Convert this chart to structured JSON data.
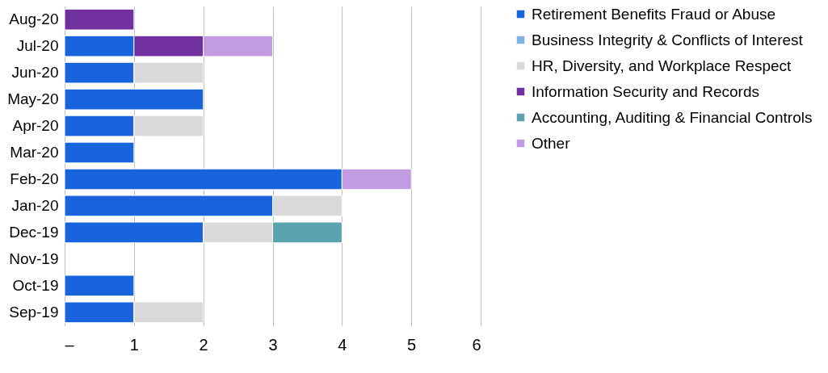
{
  "chart_data": {
    "type": "bar",
    "orientation": "horizontal",
    "stacked": true,
    "categories": [
      "Aug-20",
      "Jul-20",
      "Jun-20",
      "May-20",
      "Apr-20",
      "Mar-20",
      "Feb-20",
      "Jan-20",
      "Dec-19",
      "Nov-19",
      "Oct-19",
      "Sep-19"
    ],
    "series": [
      {
        "name": "Retirement Benefits Fraud or Abuse",
        "color": "#1764dc",
        "values": [
          null,
          1,
          1,
          2,
          1,
          1,
          4,
          3,
          2,
          null,
          1,
          1
        ]
      },
      {
        "name": "Business Integrity & Conflicts of Interest",
        "color": "#7fb3e8",
        "values": [
          null,
          null,
          null,
          null,
          null,
          null,
          null,
          null,
          null,
          null,
          null,
          null
        ]
      },
      {
        "name": "HR, Diversity, and Workplace Respect",
        "color": "#d9d9d9",
        "values": [
          null,
          null,
          1,
          null,
          1,
          null,
          null,
          1,
          1,
          null,
          null,
          1
        ]
      },
      {
        "name": "Information Security and Records",
        "color": "#7030a0",
        "values": [
          1,
          1,
          null,
          null,
          null,
          null,
          null,
          null,
          null,
          null,
          null,
          null
        ]
      },
      {
        "name": "Accounting, Auditing & Financial Controls",
        "color": "#5ba3ae",
        "values": [
          null,
          null,
          null,
          null,
          null,
          null,
          null,
          null,
          1,
          null,
          null,
          null
        ]
      },
      {
        "name": "Other",
        "color": "#c39be0",
        "values": [
          null,
          1,
          null,
          null,
          null,
          null,
          1,
          null,
          null,
          null,
          null,
          null
        ]
      }
    ],
    "xlim": [
      0,
      6
    ],
    "xticks": [
      {
        "value": 0,
        "label": "–"
      },
      1,
      2,
      3,
      4,
      5,
      6
    ],
    "grid": "x",
    "legend": "right"
  }
}
